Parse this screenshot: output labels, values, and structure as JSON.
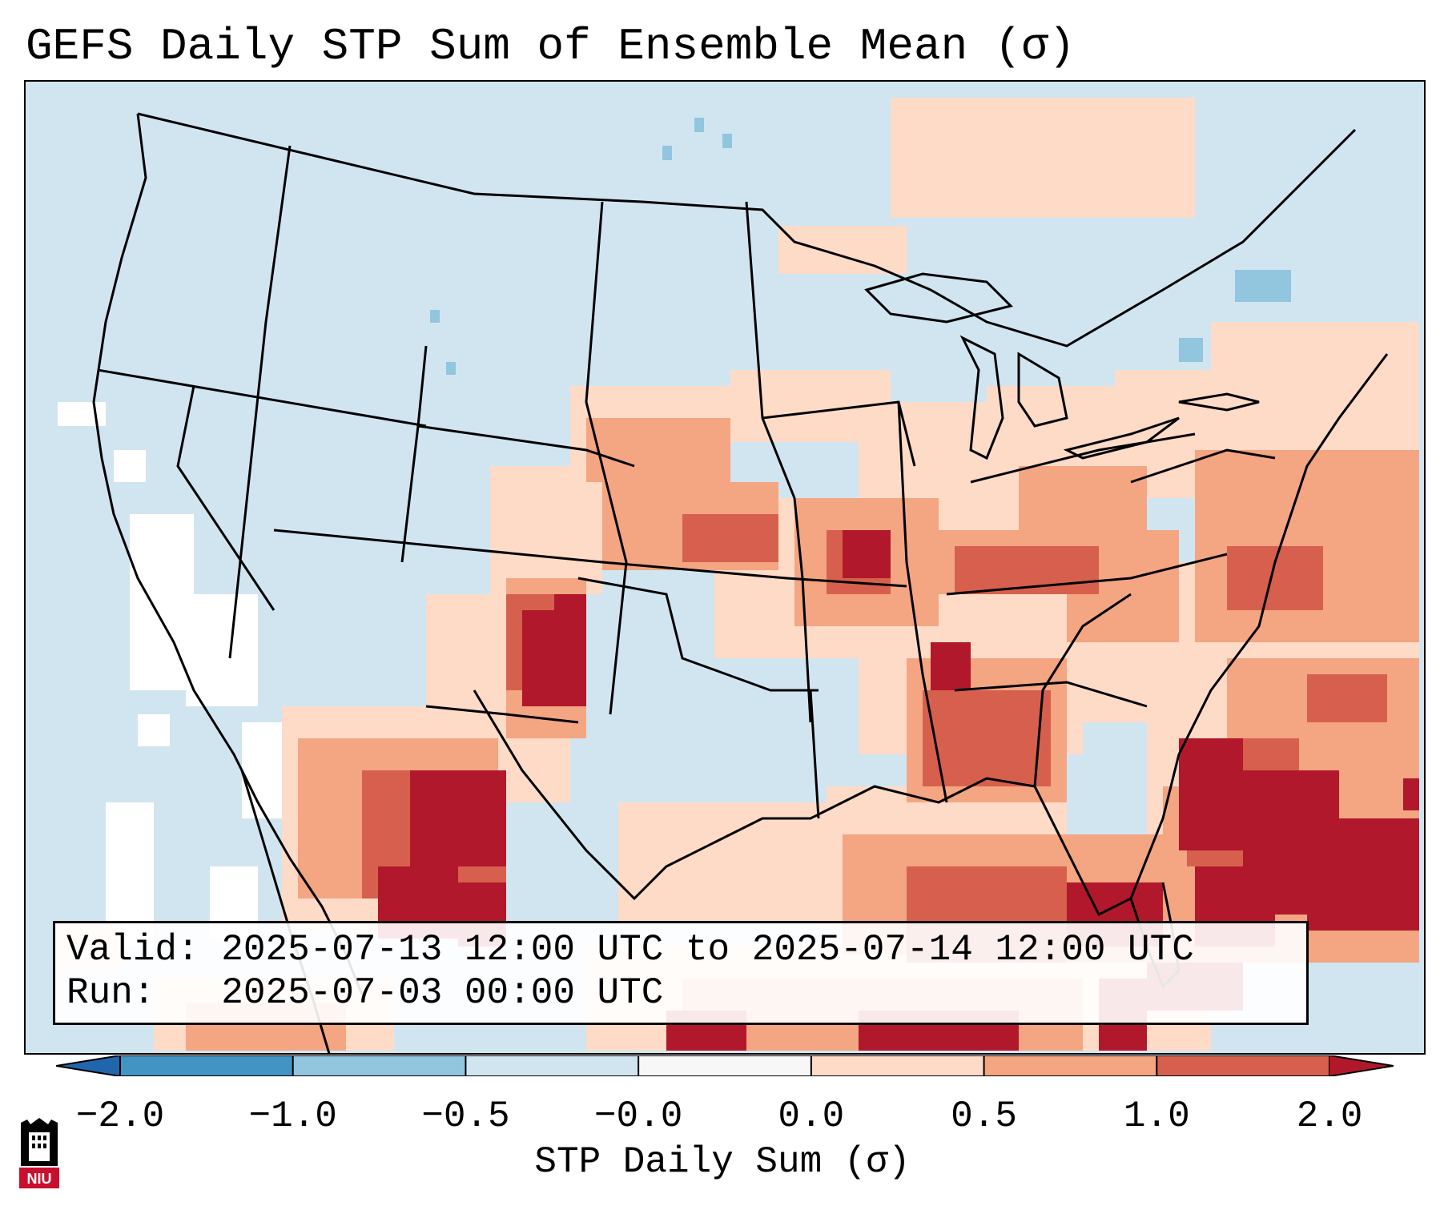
{
  "title": "GEFS Daily STP Sum of Ensemble Mean (σ)",
  "info": {
    "valid_label": "Valid:",
    "valid_value": "2025-07-13 12:00 UTC to 2025-07-14 12:00 UTC",
    "run_label": "Run:  ",
    "run_value": "2025-07-03 00:00 UTC"
  },
  "colorbar": {
    "label": "STP Daily Sum (σ)",
    "ticks": [
      "−2.0",
      "−1.0",
      "−0.5",
      "−0.0",
      "0.0",
      "0.5",
      "1.0",
      "2.0"
    ],
    "colors": [
      "#2166ac",
      "#4393c3",
      "#92c5de",
      "#d1e5f0",
      "#f7f7f7",
      "#fddbc7",
      "#f4a582",
      "#d6604d",
      "#b2182b"
    ]
  },
  "map": {
    "projection": "Lambert conformal, CONUS",
    "background_value_color": "#d1e5f0",
    "ocean_white_color": "#ffffff",
    "boundary_color": "#000000"
  },
  "logo": {
    "text": "NIU"
  },
  "legend": {
    "colors": {
      "light_blue": "#d1e5f0",
      "mid_blue": "#92c5de",
      "white": "#f7f7f7",
      "peach": "#fddbc7",
      "salmon": "#f4a582",
      "red": "#d6604d",
      "dark_red": "#b2182b"
    }
  }
}
